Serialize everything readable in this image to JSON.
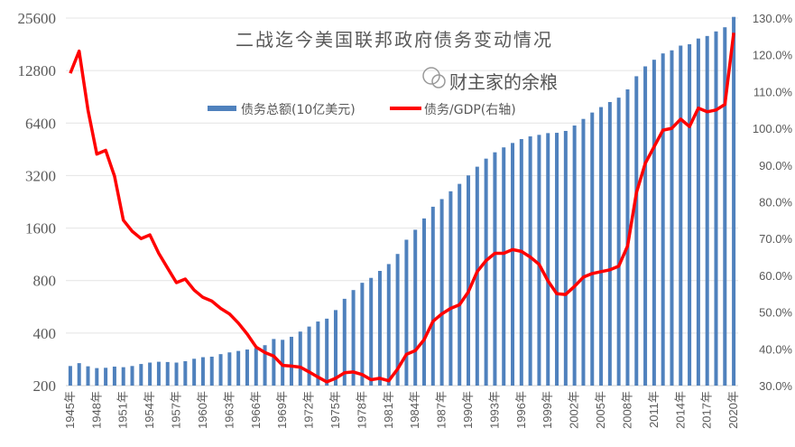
{
  "chart_data": {
    "type": "bar+line",
    "title": "二战迄今美国联邦政府债务变动情况",
    "legend_placement": "top-center",
    "grid": true,
    "left_axis": {
      "scale": "log2",
      "range": [
        200,
        25600
      ],
      "ticks": [
        200,
        400,
        800,
        1600,
        3200,
        6400,
        12800,
        25600
      ]
    },
    "right_axis": {
      "range": [
        30,
        130
      ],
      "ticks": [
        "30.0%",
        "40.0%",
        "50.0%",
        "60.0%",
        "70.0%",
        "80.0%",
        "90.0%",
        "100.0%",
        "110.0%",
        "120.0%",
        "130.0%"
      ]
    },
    "x_tick_labels": [
      "1945年",
      "1948年",
      "1951年",
      "1954年",
      "1957年",
      "1960年",
      "1963年",
      "1966年",
      "1969年",
      "1972年",
      "1975年",
      "1978年",
      "1981年",
      "1984年",
      "1987年",
      "1990年",
      "1993年",
      "1996年",
      "1999年",
      "2002年",
      "2005年",
      "2008年",
      "2011年",
      "2014年",
      "2017年",
      "2020年"
    ],
    "years": [
      1945,
      1946,
      1947,
      1948,
      1949,
      1950,
      1951,
      1952,
      1953,
      1954,
      1955,
      1956,
      1957,
      1958,
      1959,
      1960,
      1961,
      1962,
      1963,
      1964,
      1965,
      1966,
      1967,
      1968,
      1969,
      1970,
      1971,
      1972,
      1973,
      1974,
      1975,
      1976,
      1977,
      1978,
      1979,
      1980,
      1981,
      1982,
      1983,
      1984,
      1985,
      1986,
      1987,
      1988,
      1989,
      1990,
      1991,
      1992,
      1993,
      1994,
      1995,
      1996,
      1997,
      1998,
      1999,
      2000,
      2001,
      2002,
      2003,
      2004,
      2005,
      2006,
      2007,
      2008,
      2009,
      2010,
      2011,
      2012,
      2013,
      2014,
      2015,
      2016,
      2017,
      2018,
      2019,
      2020
    ],
    "series": [
      {
        "name": "债务总额(10亿美元)",
        "type": "bar",
        "axis": "left",
        "color": "#4f81bd",
        "values": [
          259,
          269,
          258,
          252,
          253,
          257,
          255,
          259,
          266,
          271,
          274,
          273,
          271,
          276,
          285,
          291,
          293,
          303,
          310,
          316,
          322,
          328,
          341,
          370,
          366,
          381,
          408,
          436,
          466,
          484,
          542,
          629,
          706,
          777,
          829,
          909,
          995,
          1137,
          1372,
          1565,
          1817,
          2121,
          2346,
          2601,
          2868,
          3206,
          3598,
          4002,
          4351,
          4643,
          4921,
          5181,
          5369,
          5478,
          5606,
          5629,
          5770,
          6198,
          6760,
          7355,
          7905,
          8451,
          8951,
          9986,
          11876,
          13529,
          14764,
          16051,
          16719,
          17794,
          18120,
          19539,
          20206,
          21462,
          22669,
          26000
        ]
      },
      {
        "name": "债务/GDP(右轴)",
        "type": "line",
        "axis": "right",
        "color": "#ff0000",
        "values": [
          115,
          121,
          105,
          93,
          94,
          87,
          75,
          72,
          70,
          71,
          66,
          62,
          58,
          59,
          56,
          54,
          53,
          51,
          49.5,
          47,
          44,
          40.5,
          39,
          38,
          35.5,
          35.3,
          35,
          33.7,
          32.3,
          31,
          32,
          33.5,
          33.7,
          33,
          31.6,
          32,
          31.3,
          34.5,
          38.5,
          39.5,
          42.5,
          47.5,
          49.5,
          51,
          52,
          55.5,
          61,
          64,
          66,
          66,
          67,
          66.5,
          65,
          63,
          58.5,
          55,
          54.8,
          57,
          59.5,
          60.5,
          61,
          61.5,
          62.5,
          68,
          82.5,
          90.5,
          95,
          99.5,
          100,
          102.5,
          100.5,
          105.5,
          104.5,
          105,
          106.5,
          126
        ]
      }
    ]
  },
  "watermark": "财主家的余粮"
}
